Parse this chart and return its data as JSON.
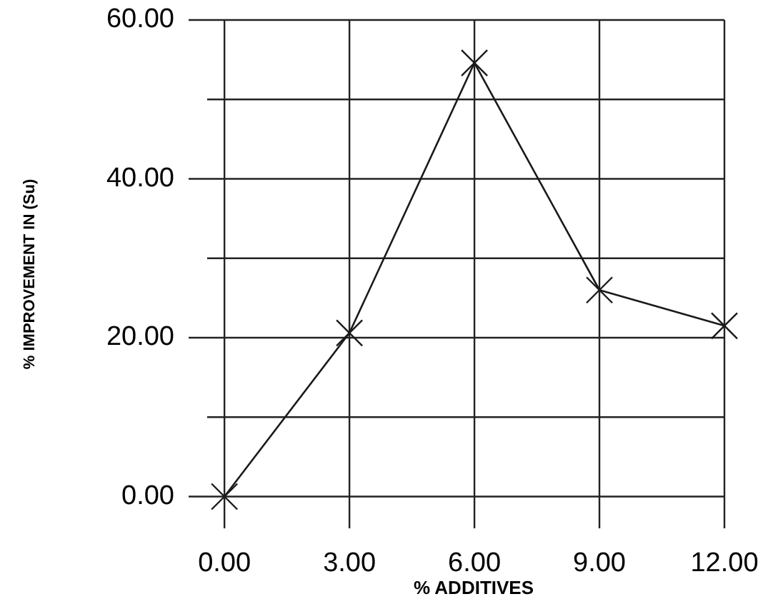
{
  "chart_data": {
    "type": "line",
    "xlabel": "% ADDITIVES",
    "ylabel": "% IMPROVEMENT IN (Su)",
    "x": [
      0,
      3,
      6,
      9,
      12
    ],
    "series": [
      {
        "color": "#1a1a1a",
        "values": [
          0,
          20.6,
          54.6,
          26.0,
          21.5
        ]
      }
    ],
    "xlim": [
      -0.86,
      12
    ],
    "ylim": [
      -4,
      60
    ],
    "xticks": [
      {
        "value": 0,
        "label": "0.00"
      },
      {
        "value": 3,
        "label": "3.00"
      },
      {
        "value": 6,
        "label": "6.00"
      },
      {
        "value": 9,
        "label": "9.00"
      },
      {
        "value": 12,
        "label": "12.00"
      }
    ],
    "yticks": [
      {
        "value": 0,
        "label": "0.00"
      },
      {
        "value": 10,
        "label": null
      },
      {
        "value": 20,
        "label": "20.00"
      },
      {
        "value": 30,
        "label": null
      },
      {
        "value": 40,
        "label": "40.00"
      },
      {
        "value": 50,
        "label": null
      },
      {
        "value": 60,
        "label": "60.00"
      }
    ],
    "grid": true,
    "marker": "cross",
    "line_style": "solid"
  }
}
